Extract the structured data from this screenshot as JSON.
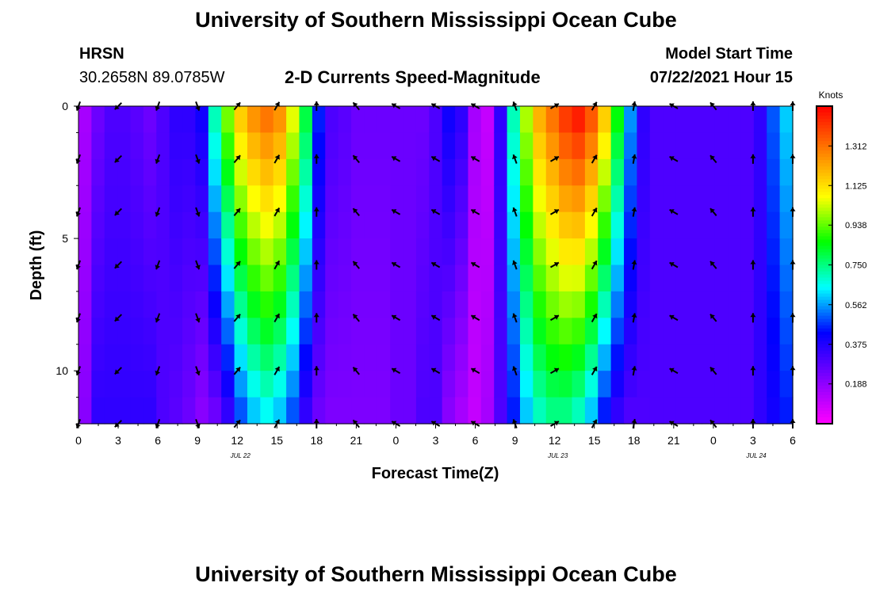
{
  "header": {
    "title": "University of Southern Mississippi Ocean Cube",
    "station": "HRSN",
    "coords": "30.2658N  89.0785W",
    "model_start_label": "Model Start Time",
    "model_start_value": "07/22/2021 Hour 15",
    "chart_title": "2-D Currents Speed-Magnitude"
  },
  "footer": {
    "title": "University of Southern Mississippi Ocean Cube"
  },
  "chart_data": {
    "type": "heatmap",
    "title": "2-D Currents Speed-Magnitude",
    "xlabel": "Forecast Time(Z)",
    "ylabel": "Depth (ft)",
    "x_tick_labels": [
      "0",
      "3",
      "6",
      "9",
      "12",
      "15",
      "18",
      "21",
      "0",
      "3",
      "6",
      "9",
      "12",
      "15",
      "18",
      "21",
      "0",
      "3",
      "6"
    ],
    "date_labels": [
      {
        "label": "JUL 22",
        "hour": 12
      },
      {
        "label": "JUL 23",
        "hour": 36
      },
      {
        "label": "JUL 24",
        "hour": 51
      }
    ],
    "x_range_hours": [
      0,
      54
    ],
    "y_ticks": [
      0,
      5,
      10
    ],
    "y_range_ft": [
      0,
      12
    ],
    "colorbar": {
      "title": "Knots",
      "tick_labels": [
        "0.188",
        "0.375",
        "0.562",
        "0.750",
        "0.938",
        "1.125",
        "1.312"
      ],
      "tick_values": [
        0.188,
        0.375,
        0.562,
        0.75,
        0.938,
        1.125,
        1.312
      ],
      "range": [
        0,
        1.5
      ],
      "colors": [
        "#ff00ff",
        "#8000ff",
        "#0000ff",
        "#00ffff",
        "#00ff00",
        "#ffff00",
        "#ff8000",
        "#ff0000"
      ]
    },
    "speed_vs_time": {
      "hours": [
        0,
        1,
        2,
        3,
        4,
        5,
        6,
        7,
        8,
        9,
        10,
        11,
        12,
        13,
        14,
        15,
        16,
        17,
        18,
        19,
        20,
        21,
        22,
        23,
        24,
        25,
        26,
        27,
        28,
        29,
        30,
        31,
        32,
        33,
        34,
        35,
        36,
        37,
        38,
        39,
        40,
        41,
        42,
        43,
        44,
        45,
        46,
        47,
        48,
        49,
        50,
        51,
        52,
        53,
        54
      ],
      "surface_kn": [
        0.15,
        0.25,
        0.3,
        0.3,
        0.28,
        0.25,
        0.3,
        0.35,
        0.35,
        0.4,
        0.7,
        0.95,
        1.15,
        1.25,
        1.3,
        1.25,
        1.05,
        0.8,
        0.45,
        0.3,
        0.28,
        0.25,
        0.25,
        0.25,
        0.25,
        0.25,
        0.25,
        0.3,
        0.4,
        0.35,
        0.15,
        0.1,
        0.35,
        0.7,
        1.0,
        1.2,
        1.3,
        1.4,
        1.45,
        1.35,
        1.15,
        0.85,
        0.55,
        0.35,
        0.3,
        0.3,
        0.3,
        0.3,
        0.3,
        0.3,
        0.3,
        0.3,
        0.35,
        0.5,
        0.6
      ],
      "bottom_kn": [
        0.2,
        0.35,
        0.35,
        0.35,
        0.35,
        0.35,
        0.3,
        0.28,
        0.25,
        0.2,
        0.25,
        0.35,
        0.5,
        0.6,
        0.65,
        0.6,
        0.5,
        0.35,
        0.25,
        0.22,
        0.22,
        0.22,
        0.22,
        0.22,
        0.25,
        0.25,
        0.3,
        0.3,
        0.2,
        0.15,
        0.1,
        0.15,
        0.3,
        0.45,
        0.6,
        0.7,
        0.75,
        0.75,
        0.7,
        0.6,
        0.45,
        0.35,
        0.3,
        0.3,
        0.3,
        0.3,
        0.3,
        0.3,
        0.3,
        0.3,
        0.3,
        0.3,
        0.35,
        0.4,
        0.45
      ]
    },
    "arrow_hours": [
      0,
      3,
      6,
      9,
      12,
      15,
      18,
      21,
      24,
      27,
      30,
      33,
      36,
      39,
      42,
      45,
      48,
      51,
      54
    ],
    "arrow_depths_ft": [
      0,
      2,
      4,
      6,
      8,
      10,
      12
    ],
    "arrow_direction_deg": [
      200,
      225,
      200,
      160,
      40,
      30,
      0,
      320,
      300,
      300,
      300,
      340,
      60,
      30,
      10,
      300,
      320,
      0,
      0
    ]
  }
}
